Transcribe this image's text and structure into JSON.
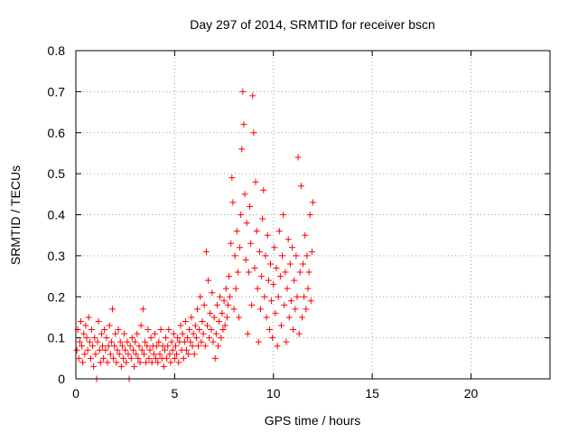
{
  "colors": {
    "series": "#ff0000",
    "axis": "#000000",
    "grid": "#a0a0a0",
    "background": "#ffffff"
  },
  "chart_data": {
    "type": "scatter",
    "title": "Day 297 of 2014, SRMTID for receiver bscn",
    "xlabel": "GPS time / hours",
    "ylabel": "SRMTID / TECUs",
    "xlim": [
      0,
      24
    ],
    "ylim": [
      0,
      0.8
    ],
    "xticks": [
      0,
      5,
      10,
      15,
      20
    ],
    "yticks": [
      0,
      0.1,
      0.2,
      0.3,
      0.4,
      0.5,
      0.6,
      0.7,
      0.8
    ],
    "xtick_labels": [
      "0",
      "5",
      "10",
      "15",
      "20"
    ],
    "ytick_labels": [
      "0",
      "0.1",
      "0.2",
      "0.3",
      "0.4",
      "0.5",
      "0.6",
      "0.7",
      "0.8"
    ],
    "grid": true,
    "marker": "plus",
    "series": [
      {
        "name": "SRMTID",
        "points": [
          [
            0.05,
            0.07
          ],
          [
            0.1,
            0.12
          ],
          [
            0.15,
            0.05
          ],
          [
            0.2,
            0.09
          ],
          [
            0.25,
            0.14
          ],
          [
            0.3,
            0.08
          ],
          [
            0.35,
            0.04
          ],
          [
            0.4,
            0.11
          ],
          [
            0.45,
            0.06
          ],
          [
            0.5,
            0.13
          ],
          [
            0.55,
            0.1
          ],
          [
            0.6,
            0.07
          ],
          [
            0.65,
            0.15
          ],
          [
            0.7,
            0.09
          ],
          [
            0.75,
            0.05
          ],
          [
            0.8,
            0.12
          ],
          [
            0.85,
            0.08
          ],
          [
            0.9,
            0.03
          ],
          [
            0.95,
            0.1
          ],
          [
            1.0,
            0.06
          ],
          [
            1.05,
            0.0
          ],
          [
            1.1,
            0.09
          ],
          [
            1.15,
            0.14
          ],
          [
            1.2,
            0.07
          ],
          [
            1.25,
            0.04
          ],
          [
            1.3,
            0.11
          ],
          [
            1.35,
            0.08
          ],
          [
            1.4,
            0.05
          ],
          [
            1.45,
            0.12
          ],
          [
            1.5,
            0.07
          ],
          [
            1.55,
            0.1
          ],
          [
            1.6,
            0.04
          ],
          [
            1.65,
            0.08
          ],
          [
            1.7,
            0.13
          ],
          [
            1.75,
            0.06
          ],
          [
            1.8,
            0.09
          ],
          [
            1.85,
            0.17
          ],
          [
            1.9,
            0.05
          ],
          [
            1.95,
            0.08
          ],
          [
            2.0,
            0.11
          ],
          [
            2.05,
            0.04
          ],
          [
            2.1,
            0.07
          ],
          [
            2.15,
            0.12
          ],
          [
            2.2,
            0.06
          ],
          [
            2.25,
            0.09
          ],
          [
            2.3,
            0.03
          ],
          [
            2.35,
            0.08
          ],
          [
            2.4,
            0.05
          ],
          [
            2.45,
            0.11
          ],
          [
            2.5,
            0.07
          ],
          [
            2.55,
            0.04
          ],
          [
            2.6,
            0.09
          ],
          [
            2.65,
            0.06
          ],
          [
            2.7,
            0.0
          ],
          [
            2.75,
            0.08
          ],
          [
            2.8,
            0.05
          ],
          [
            2.85,
            0.1
          ],
          [
            2.9,
            0.07
          ],
          [
            2.95,
            0.03
          ],
          [
            3.0,
            0.09
          ],
          [
            3.05,
            0.06
          ],
          [
            3.1,
            0.11
          ],
          [
            3.15,
            0.05
          ],
          [
            3.2,
            0.08
          ],
          [
            3.25,
            0.04
          ],
          [
            3.3,
            0.13
          ],
          [
            3.35,
            0.07
          ],
          [
            3.4,
            0.17
          ],
          [
            3.45,
            0.06
          ],
          [
            3.5,
            0.09
          ],
          [
            3.55,
            0.04
          ],
          [
            3.6,
            0.08
          ],
          [
            3.65,
            0.12
          ],
          [
            3.7,
            0.05
          ],
          [
            3.75,
            0.07
          ],
          [
            3.8,
            0.1
          ],
          [
            3.85,
            0.04
          ],
          [
            3.9,
            0.08
          ],
          [
            3.95,
            0.06
          ],
          [
            4.0,
            0.11
          ],
          [
            4.05,
            0.05
          ],
          [
            4.1,
            0.08
          ],
          [
            4.15,
            0.04
          ],
          [
            4.2,
            0.09
          ],
          [
            4.25,
            0.06
          ],
          [
            4.3,
            0.12
          ],
          [
            4.35,
            0.05
          ],
          [
            4.4,
            0.08
          ],
          [
            4.45,
            0.03
          ],
          [
            4.5,
            0.07
          ],
          [
            4.55,
            0.1
          ],
          [
            4.6,
            0.05
          ],
          [
            4.65,
            0.08
          ],
          [
            4.7,
            0.12
          ],
          [
            4.75,
            0.06
          ],
          [
            4.8,
            0.04
          ],
          [
            4.85,
            0.09
          ],
          [
            4.9,
            0.07
          ],
          [
            4.95,
            0.11
          ],
          [
            5.0,
            0.05
          ],
          [
            5.05,
            0.08
          ],
          [
            5.1,
            0.06
          ],
          [
            5.15,
            0.1
          ],
          [
            5.2,
            0.04
          ],
          [
            5.25,
            0.09
          ],
          [
            5.3,
            0.13
          ],
          [
            5.35,
            0.07
          ],
          [
            5.4,
            0.11
          ],
          [
            5.45,
            0.05
          ],
          [
            5.5,
            0.09
          ],
          [
            5.55,
            0.14
          ],
          [
            5.6,
            0.07
          ],
          [
            5.65,
            0.1
          ],
          [
            5.7,
            0.06
          ],
          [
            5.75,
            0.12
          ],
          [
            5.8,
            0.09
          ],
          [
            5.85,
            0.15
          ],
          [
            5.9,
            0.08
          ],
          [
            5.95,
            0.11
          ],
          [
            6.0,
            0.06
          ],
          [
            6.05,
            0.13
          ],
          [
            6.1,
            0.1
          ],
          [
            6.15,
            0.17
          ],
          [
            6.2,
            0.08
          ],
          [
            6.25,
            0.12
          ],
          [
            6.3,
            0.2
          ],
          [
            6.35,
            0.09
          ],
          [
            6.4,
            0.14
          ],
          [
            6.45,
            0.11
          ],
          [
            6.5,
            0.18
          ],
          [
            6.55,
            0.08
          ],
          [
            6.6,
            0.31
          ],
          [
            6.65,
            0.13
          ],
          [
            6.7,
            0.24
          ],
          [
            6.75,
            0.1
          ],
          [
            6.8,
            0.16
          ],
          [
            6.85,
            0.12
          ],
          [
            6.9,
            0.21
          ],
          [
            6.95,
            0.09
          ],
          [
            7.0,
            0.15
          ],
          [
            7.05,
            0.05
          ],
          [
            7.1,
            0.11
          ],
          [
            7.15,
            0.18
          ],
          [
            7.2,
            0.08
          ],
          [
            7.25,
            0.14
          ],
          [
            7.3,
            0.2
          ],
          [
            7.35,
            0.1
          ],
          [
            7.4,
            0.16
          ],
          [
            7.45,
            0.12
          ],
          [
            7.5,
            0.19
          ],
          [
            7.55,
            0.13
          ],
          [
            7.6,
            0.22
          ],
          [
            7.65,
            0.15
          ],
          [
            7.7,
            0.18
          ],
          [
            7.75,
            0.25
          ],
          [
            7.8,
            0.2
          ],
          [
            7.85,
            0.33
          ],
          [
            7.9,
            0.49
          ],
          [
            7.95,
            0.43
          ],
          [
            8.0,
            0.17
          ],
          [
            8.05,
            0.3
          ],
          [
            8.1,
            0.22
          ],
          [
            8.15,
            0.36
          ],
          [
            8.2,
            0.26
          ],
          [
            8.25,
            0.15
          ],
          [
            8.3,
            0.32
          ],
          [
            8.35,
            0.4
          ],
          [
            8.4,
            0.56
          ],
          [
            8.45,
            0.7
          ],
          [
            8.5,
            0.62
          ],
          [
            8.55,
            0.45
          ],
          [
            8.6,
            0.29
          ],
          [
            8.65,
            0.38
          ],
          [
            8.7,
            0.11
          ],
          [
            8.75,
            0.26
          ],
          [
            8.8,
            0.42
          ],
          [
            8.85,
            0.33
          ],
          [
            8.9,
            0.18
          ],
          [
            8.95,
            0.69
          ],
          [
            9.0,
            0.6
          ],
          [
            9.05,
            0.27
          ],
          [
            9.1,
            0.48
          ],
          [
            9.15,
            0.36
          ],
          [
            9.2,
            0.22
          ],
          [
            9.25,
            0.09
          ],
          [
            9.3,
            0.31
          ],
          [
            9.35,
            0.17
          ],
          [
            9.4,
            0.25
          ],
          [
            9.45,
            0.39
          ],
          [
            9.5,
            0.46
          ],
          [
            9.55,
            0.2
          ],
          [
            9.6,
            0.3
          ],
          [
            9.65,
            0.15
          ],
          [
            9.7,
            0.35
          ],
          [
            9.75,
            0.24
          ],
          [
            9.8,
            0.12
          ],
          [
            9.85,
            0.28
          ],
          [
            9.9,
            0.19
          ],
          [
            9.95,
            0.1
          ],
          [
            10.0,
            0.23
          ],
          [
            10.05,
            0.32
          ],
          [
            10.1,
            0.16
          ],
          [
            10.15,
            0.27
          ],
          [
            10.2,
            0.08
          ],
          [
            10.25,
            0.2
          ],
          [
            10.3,
            0.36
          ],
          [
            10.35,
            0.25
          ],
          [
            10.4,
            0.13
          ],
          [
            10.45,
            0.3
          ],
          [
            10.5,
            0.4
          ],
          [
            10.55,
            0.18
          ],
          [
            10.6,
            0.26
          ],
          [
            10.65,
            0.09
          ],
          [
            10.7,
            0.22
          ],
          [
            10.75,
            0.34
          ],
          [
            10.8,
            0.15
          ],
          [
            10.85,
            0.28
          ],
          [
            10.9,
            0.19
          ],
          [
            10.95,
            0.32
          ],
          [
            11.0,
            0.12
          ],
          [
            11.05,
            0.24
          ],
          [
            11.1,
            0.17
          ],
          [
            11.15,
            0.3
          ],
          [
            11.2,
            0.2
          ],
          [
            11.25,
            0.54
          ],
          [
            11.3,
            0.11
          ],
          [
            11.35,
            0.26
          ],
          [
            11.4,
            0.47
          ],
          [
            11.45,
            0.15
          ],
          [
            11.5,
            0.28
          ],
          [
            11.55,
            0.2
          ],
          [
            11.6,
            0.35
          ],
          [
            11.65,
            0.17
          ],
          [
            11.7,
            0.3
          ],
          [
            11.75,
            0.22
          ],
          [
            11.8,
            0.26
          ],
          [
            11.85,
            0.4
          ],
          [
            11.9,
            0.19
          ],
          [
            11.95,
            0.31
          ],
          [
            12.0,
            0.43
          ]
        ]
      }
    ]
  }
}
